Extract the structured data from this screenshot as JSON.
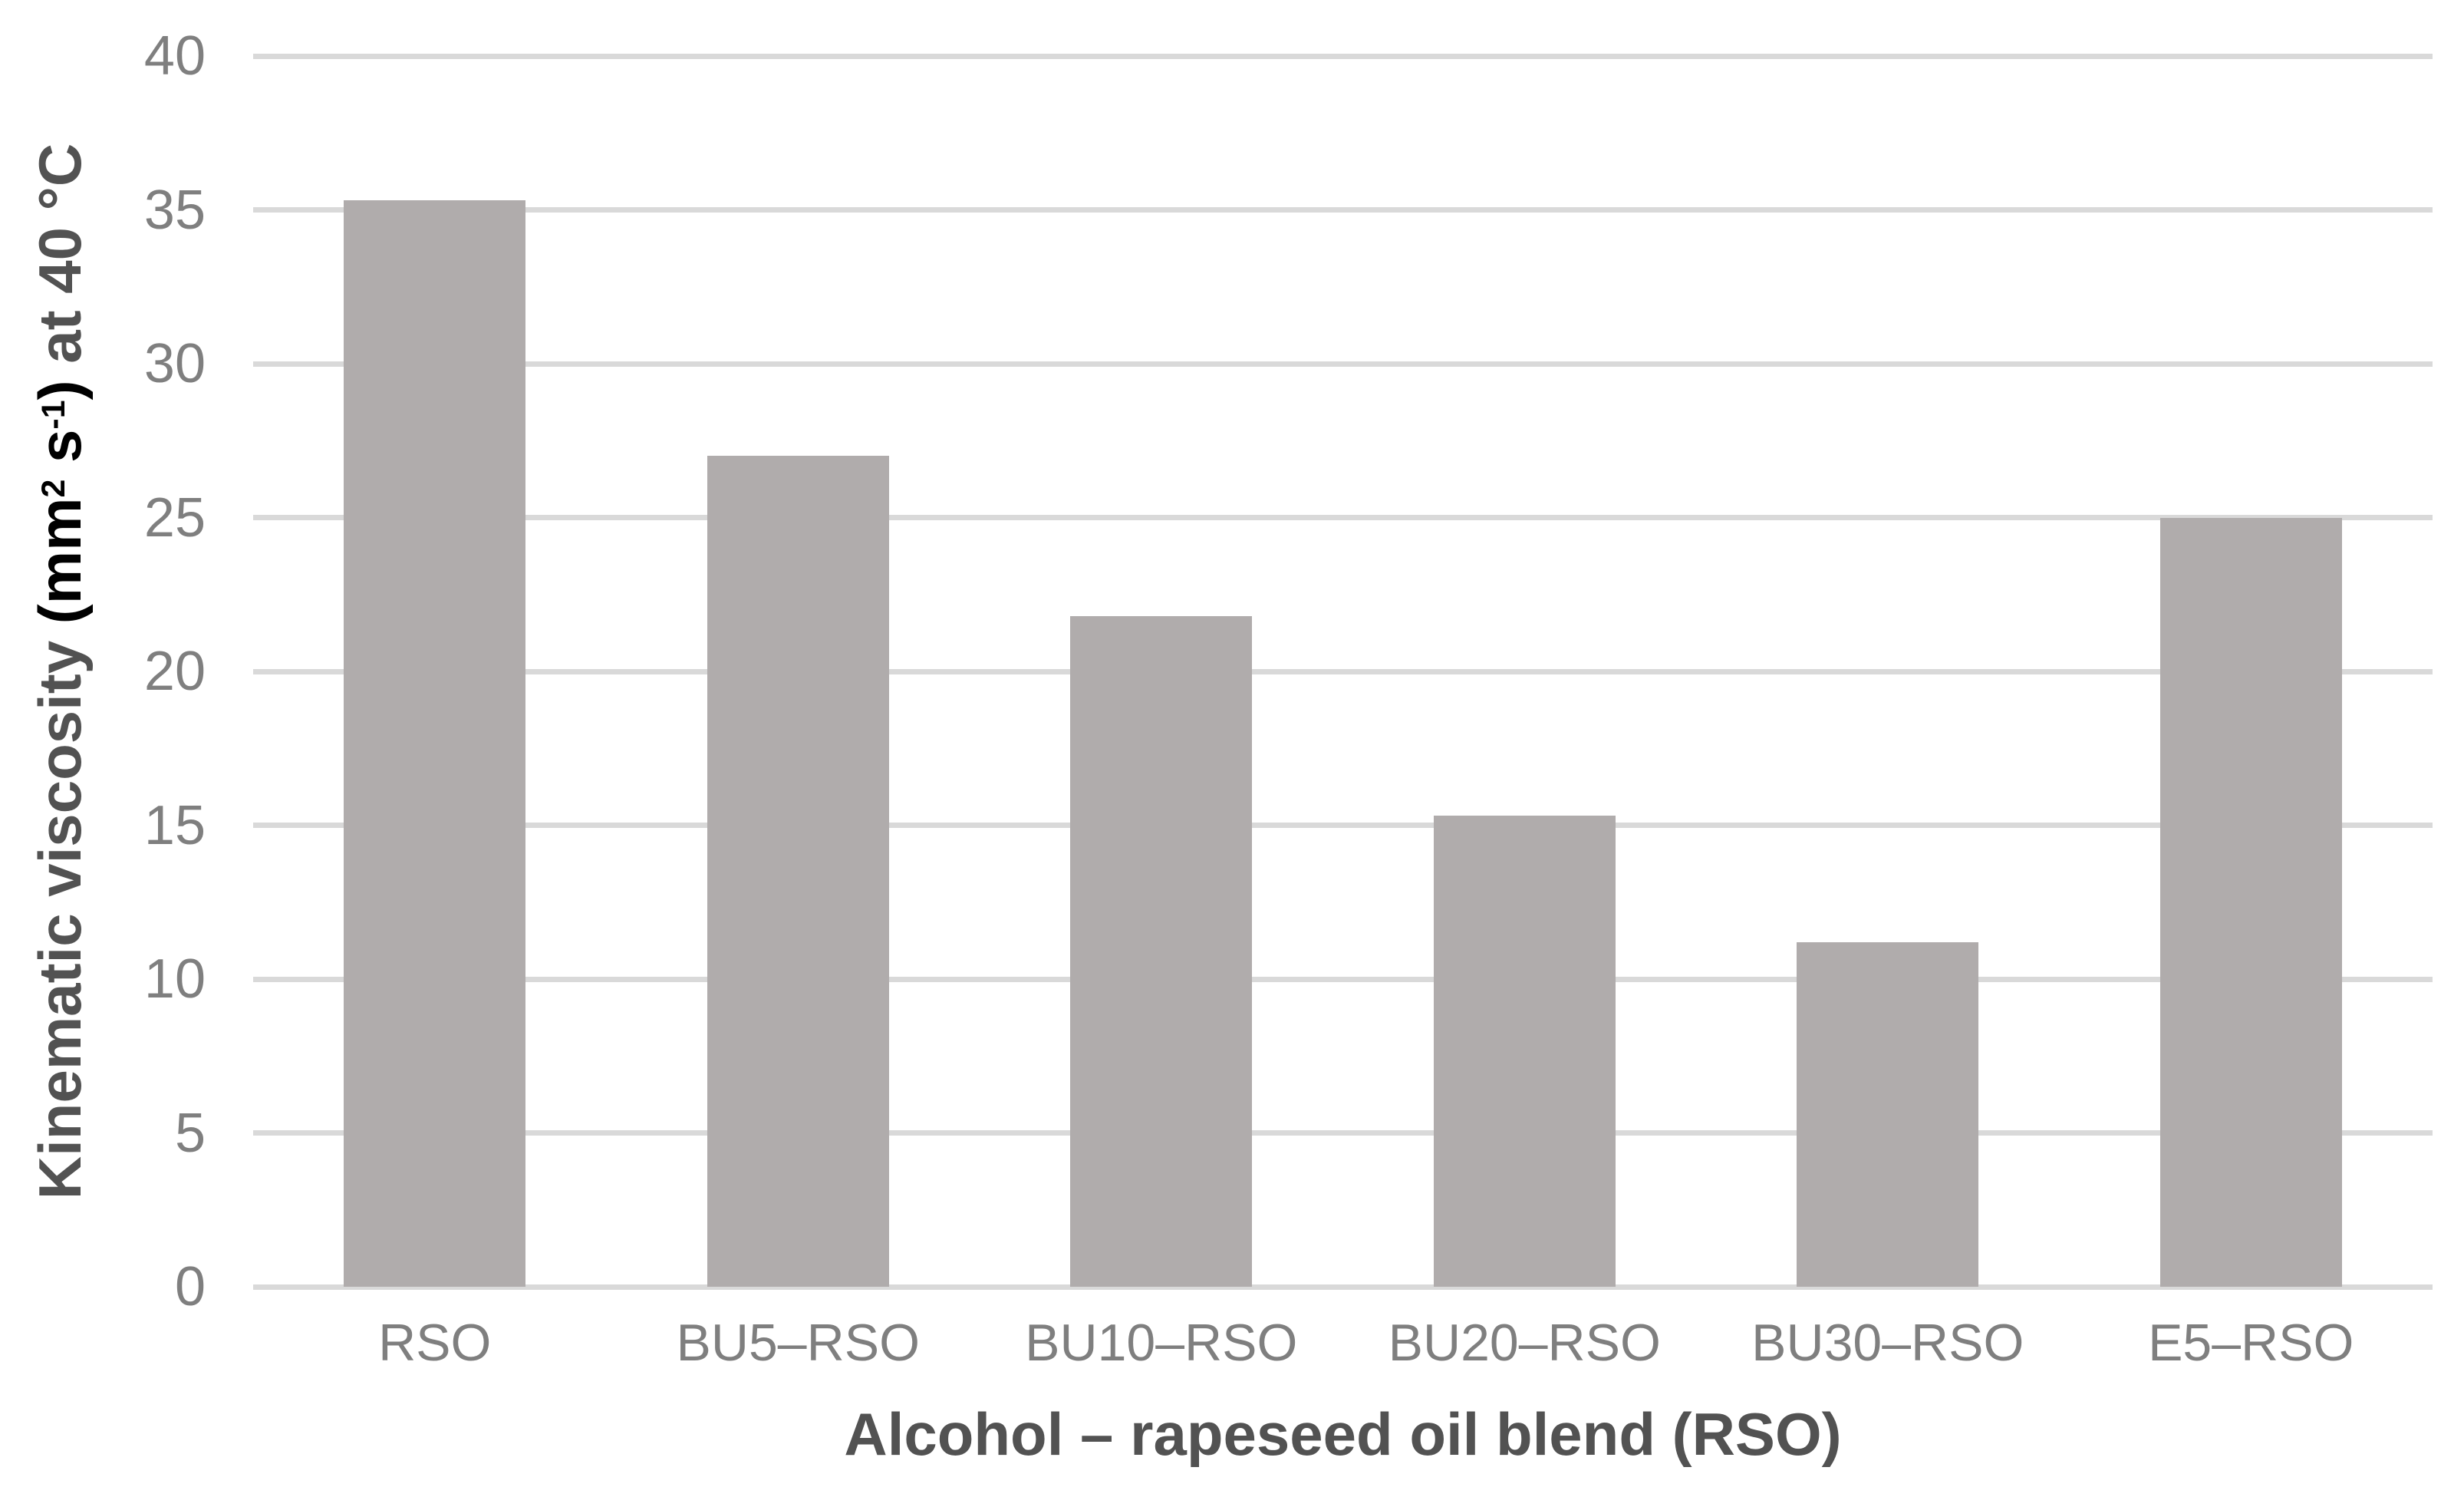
{
  "chart_data": {
    "type": "bar",
    "title": "",
    "categories": [
      "RSO",
      "BU5–RSO",
      "BU10–RSO",
      "BU20–RSO",
      "BU30–RSO",
      "E5–RSO"
    ],
    "values": [
      35.3,
      27.0,
      21.8,
      15.3,
      11.2,
      25.0
    ],
    "xlabel": "Alcohol – rapeseed oil blend (RSO)",
    "ylabel": "Kinematic viscosity (mm2 s-1) at 40 °C",
    "ylabel_parts": [
      {
        "text": "Kinematic viscosity ",
        "sup": false,
        "black": false
      },
      {
        "text": "(mm",
        "sup": false,
        "black": true
      },
      {
        "text": "2",
        "sup": true,
        "black": true
      },
      {
        "text": " s",
        "sup": false,
        "black": true
      },
      {
        "text": "-1",
        "sup": true,
        "black": true
      },
      {
        "text": ")",
        "sup": false,
        "black": true
      },
      {
        "text": " at 40 °C",
        "sup": false,
        "black": false
      }
    ],
    "ylim": [
      0,
      40
    ],
    "yticks": [
      40,
      35,
      30,
      25,
      20,
      15,
      10,
      5,
      0
    ],
    "grid": true,
    "legend": "none",
    "colors": {
      "bar_fill": "#b0acac",
      "gridline": "#d9d9d9",
      "tick_label": "#7f7f7f",
      "axis_title": "#525252",
      "ylabel_units_segment": "#000000",
      "background": "#ffffff"
    }
  }
}
